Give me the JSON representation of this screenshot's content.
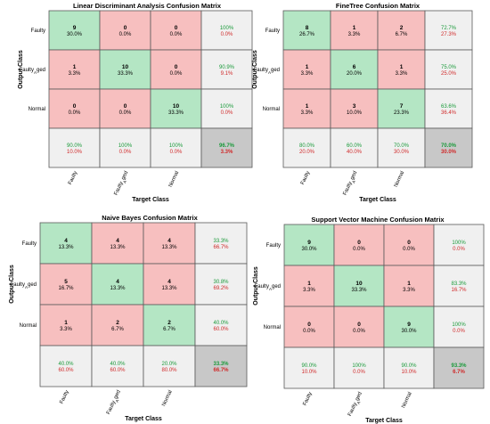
{
  "colors": {
    "correct": "#b4e6c4",
    "incorrect": "#f7bfbf",
    "summary": "#f0f0f0",
    "overall": "#c8c8c8",
    "grid": "#5a5a5a",
    "pct_good": "#1a9a3a",
    "pct_bad": "#d02a2a"
  },
  "chart_data": [
    {
      "type": "heatmap",
      "title": "Linear Discriminant Analysis Confusion Matrix",
      "xlabel": "Target Class",
      "ylabel": "Output Class",
      "classes": [
        "Faulty",
        "Faulty_Aged",
        "Normal"
      ],
      "counts": [
        [
          9,
          0,
          0
        ],
        [
          1,
          10,
          0
        ],
        [
          0,
          0,
          10
        ]
      ],
      "cell_pct": [
        [
          "30.0%",
          "0.0%",
          "0.0%"
        ],
        [
          "3.3%",
          "33.3%",
          "0.0%"
        ],
        [
          "0.0%",
          "0.0%",
          "33.3%"
        ]
      ],
      "row_summary": [
        [
          "100%",
          "0.0%"
        ],
        [
          "90.9%",
          "9.1%"
        ],
        [
          "100%",
          "0.0%"
        ]
      ],
      "col_summary": [
        [
          "90.0%",
          "10.0%"
        ],
        [
          "100%",
          "0.0%"
        ],
        [
          "100%",
          "0.0%"
        ]
      ],
      "overall": [
        "96.7%",
        "3.3%"
      ]
    },
    {
      "type": "heatmap",
      "title": "FineTree Confusion Matrix",
      "xlabel": "Target Class",
      "ylabel": "Output Class",
      "classes": [
        "Faulty",
        "Faulty_Aged",
        "Normal"
      ],
      "counts": [
        [
          8,
          1,
          2
        ],
        [
          1,
          6,
          1
        ],
        [
          1,
          3,
          7
        ]
      ],
      "cell_pct": [
        [
          "26.7%",
          "3.3%",
          "6.7%"
        ],
        [
          "3.3%",
          "20.0%",
          "3.3%"
        ],
        [
          "3.3%",
          "10.0%",
          "23.3%"
        ]
      ],
      "row_summary": [
        [
          "72.7%",
          "27.3%"
        ],
        [
          "75.0%",
          "25.0%"
        ],
        [
          "63.6%",
          "36.4%"
        ]
      ],
      "col_summary": [
        [
          "80.0%",
          "20.0%"
        ],
        [
          "60.0%",
          "40.0%"
        ],
        [
          "70.0%",
          "30.0%"
        ]
      ],
      "overall": [
        "70.0%",
        "30.0%"
      ]
    },
    {
      "type": "heatmap",
      "title": "Naive Bayes Confusion Matrix",
      "xlabel": "Target Class",
      "ylabel": "Output Class",
      "classes": [
        "Faulty",
        "Faulty_Aged",
        "Normal"
      ],
      "counts": [
        [
          4,
          4,
          4
        ],
        [
          5,
          4,
          4
        ],
        [
          1,
          2,
          2
        ]
      ],
      "cell_pct": [
        [
          "13.3%",
          "13.3%",
          "13.3%"
        ],
        [
          "16.7%",
          "13.3%",
          "13.3%"
        ],
        [
          "3.3%",
          "6.7%",
          "6.7%"
        ]
      ],
      "row_summary": [
        [
          "33.3%",
          "66.7%"
        ],
        [
          "30.8%",
          "69.2%"
        ],
        [
          "40.0%",
          "60.0%"
        ]
      ],
      "col_summary": [
        [
          "40.0%",
          "60.0%"
        ],
        [
          "40.0%",
          "60.0%"
        ],
        [
          "20.0%",
          "80.0%"
        ]
      ],
      "overall": [
        "33.3%",
        "66.7%"
      ]
    },
    {
      "type": "heatmap",
      "title": "Support Vector Machine Confusion Matrix",
      "xlabel": "Target Class",
      "ylabel": "Output Class",
      "classes": [
        "Faulty",
        "Faulty_Aged",
        "Normal"
      ],
      "counts": [
        [
          9,
          0,
          0
        ],
        [
          1,
          10,
          1
        ],
        [
          0,
          0,
          9
        ]
      ],
      "cell_pct": [
        [
          "30.0%",
          "0.0%",
          "0.0%"
        ],
        [
          "3.3%",
          "33.3%",
          "3.3%"
        ],
        [
          "0.0%",
          "0.0%",
          "30.0%"
        ]
      ],
      "row_summary": [
        [
          "100%",
          "0.0%"
        ],
        [
          "83.3%",
          "16.7%"
        ],
        [
          "100%",
          "0.0%"
        ]
      ],
      "col_summary": [
        [
          "90.0%",
          "10.0%"
        ],
        [
          "100%",
          "0.0%"
        ],
        [
          "90.0%",
          "10.0%"
        ]
      ],
      "overall": [
        "93.3%",
        "6.7%"
      ]
    }
  ]
}
